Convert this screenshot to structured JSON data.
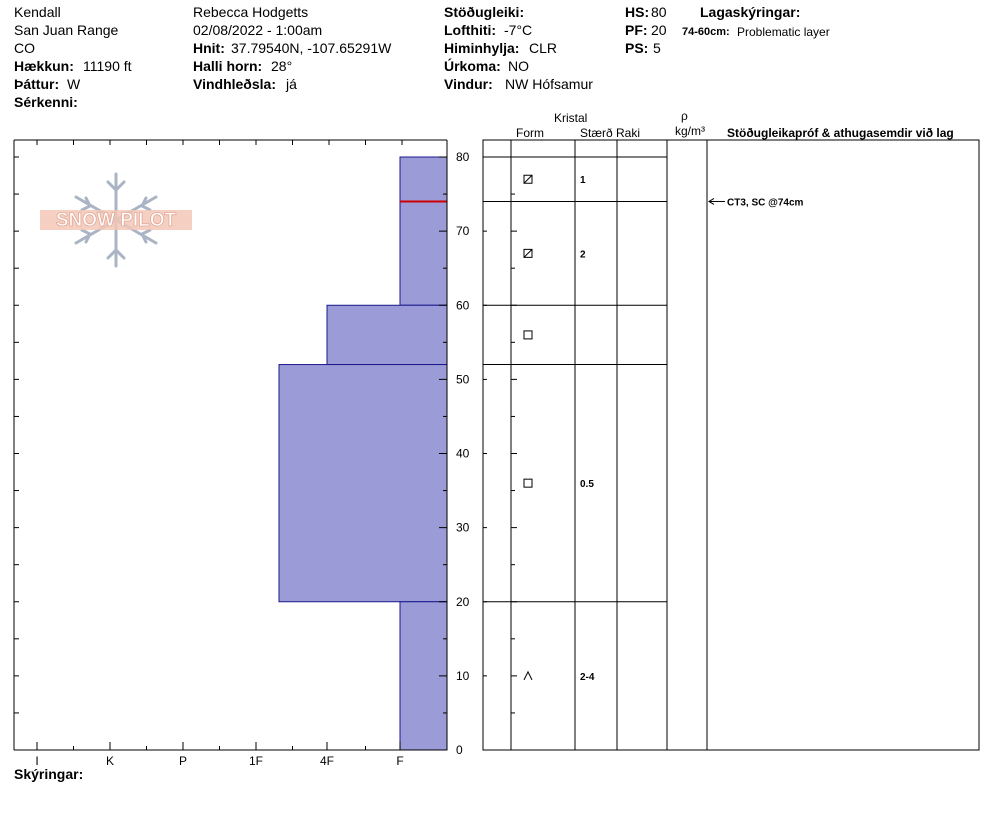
{
  "header": {
    "col1": {
      "observer_name": "Kendall",
      "range": "San Juan Range",
      "state": "CO",
      "elevation_label": "Hækkun:",
      "elevation_value": "11190 ft",
      "aspect_label": "Þáttur:",
      "aspect_value": "W",
      "specifics_label": "Sérkenni:"
    },
    "col2": {
      "author": "Rebecca Hodgetts",
      "datetime": "02/08/2022 - 1:00am",
      "coords_label": "Hnit:",
      "coords_value": "37.79540N, -107.65291W",
      "slope_label": "Halli horn:",
      "slope_value": "28°",
      "wind_loading_label": "Vindhleðsla:",
      "wind_loading_value": "já"
    },
    "col3": {
      "stability_label": "Stöðugleiki:",
      "air_temp_label": "Lofthiti:",
      "air_temp_value": "-7°C",
      "sky_label": "Himinhylja:",
      "sky_value": "CLR",
      "precip_label": "Úrkoma:",
      "precip_value": "NO",
      "wind_label": "Vindur:",
      "wind_value": "NW Hófsamur"
    },
    "col4": {
      "hs_label": "HS:",
      "hs_value": "80",
      "pf_label": "PF:",
      "pf_value": "20",
      "ps_label": "PS:",
      "ps_value": "5"
    },
    "col5": {
      "layer_notes_label": "Lagaskýringar:",
      "layer_note_range": "74-60cm:",
      "layer_note_text": "Problematic layer"
    }
  },
  "table_headers": {
    "crystal": "Kristal",
    "form": "Form",
    "size": "Stærð",
    "moisture": "Raki",
    "rho": "ρ",
    "density_unit": "kg/m³",
    "tests": "Stöðugleikapróf & athugasemdir við lag"
  },
  "legend_label": "Skýringar:",
  "logo_text": "SNOW PILOT",
  "colors": {
    "fill": "#9b9bd7",
    "stroke": "#1a1a8c",
    "weak_layer": "#cc0000"
  },
  "chart_data": {
    "type": "bar",
    "x_hardness_ticks": [
      "I",
      "K",
      "P",
      "1F",
      "4F",
      "F"
    ],
    "y_ticks": [
      0,
      10,
      20,
      30,
      40,
      50,
      60,
      70,
      80
    ],
    "ylim": [
      0,
      80
    ],
    "layers": [
      {
        "top": 80,
        "bottom": 60,
        "hardness": "F",
        "form": "faceted-rounded",
        "size": "1",
        "grain_row_y": 77
      },
      {
        "top": 60,
        "bottom": 52,
        "hardness": "4F",
        "form": "faceted",
        "size": "",
        "grain_row_y": 56
      },
      {
        "top": 52,
        "bottom": 20,
        "hardness": "1F+",
        "form": "faceted",
        "size": "0.5",
        "grain_row_y": 36
      },
      {
        "top": 20,
        "bottom": 0,
        "hardness": "F",
        "form": "depth-hoar",
        "size": "2-4",
        "grain_row_y": 10
      }
    ],
    "grain_rows": [
      {
        "depth": 77,
        "form": "faceted-rounded",
        "size": "1"
      },
      {
        "depth": 67,
        "form": "faceted-rounded",
        "size": "2"
      },
      {
        "depth": 56,
        "form": "faceted",
        "size": ""
      },
      {
        "depth": 36,
        "form": "faceted",
        "size": "0.5"
      },
      {
        "depth": 10,
        "form": "depth-hoar",
        "size": "2-4"
      }
    ],
    "table_layer_lines": [
      80,
      74,
      60,
      52,
      20
    ],
    "weak_layer_depth": 74,
    "test_results": [
      {
        "depth": 74,
        "text": "CT3, SC @74cm"
      }
    ]
  }
}
